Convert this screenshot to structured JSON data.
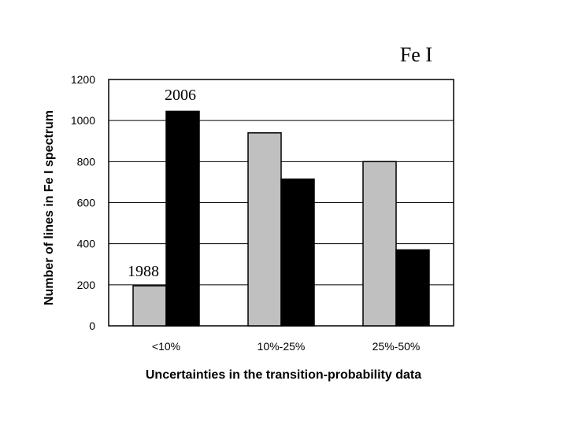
{
  "chart_data": {
    "type": "bar",
    "title": "Fe I",
    "xlabel": "Uncertainties in the transition-probability data",
    "ylabel": "Number of lines in Fe I spectrum",
    "categories": [
      "<10%",
      "10%-25%",
      "25%-50%"
    ],
    "series": [
      {
        "name": "1988",
        "color": "#c0c0c0",
        "values": [
          195,
          940,
          800
        ]
      },
      {
        "name": "2006",
        "color": "#000000",
        "values": [
          1045,
          715,
          370
        ]
      }
    ],
    "ylim": [
      0,
      1200
    ],
    "yticks": [
      "0",
      "200",
      "400",
      "600",
      "800",
      "1000",
      "1200"
    ],
    "grid": true
  }
}
